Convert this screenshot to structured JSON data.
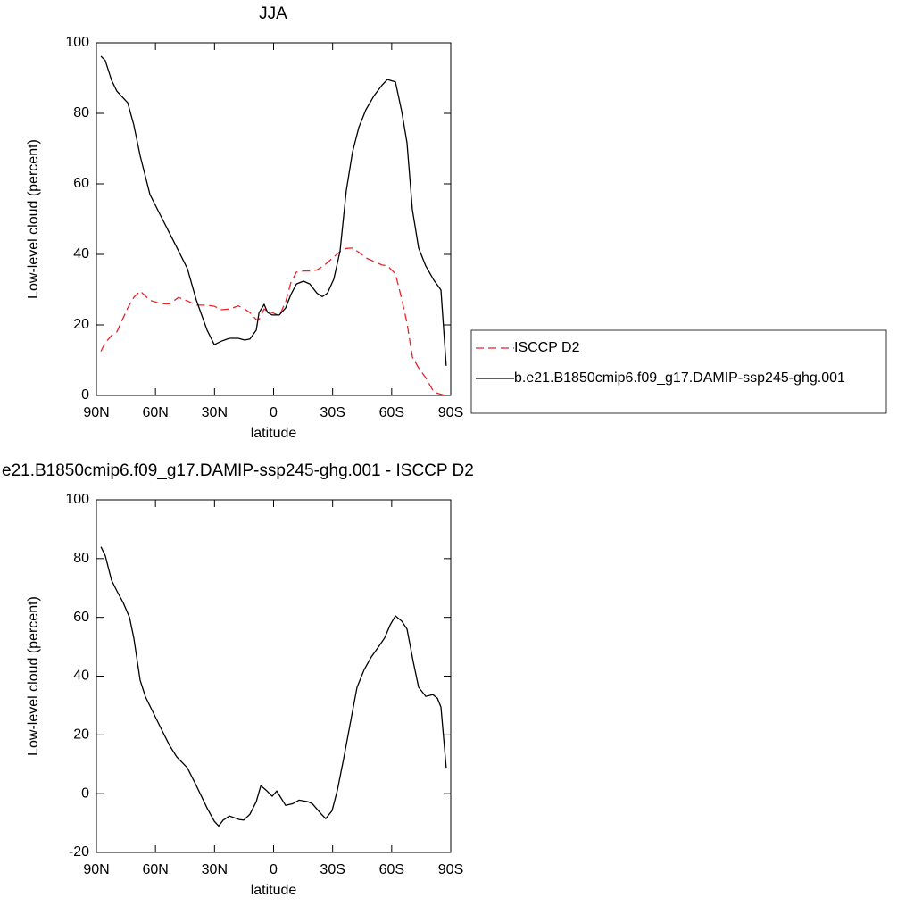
{
  "chart_data": [
    {
      "type": "line",
      "title": "JJA",
      "ylabel": "Low-level cloud (percent)",
      "xlabel": "latitude",
      "x": [
        87.7,
        85.5,
        82.3,
        79.6,
        74.1,
        71.0,
        67.8,
        62.8,
        57.4,
        52.8,
        48.3,
        43.8,
        39.2,
        33.8,
        30.1,
        26.5,
        22.4,
        17.9,
        14.7,
        12.0,
        8.8,
        7.4,
        4.8,
        3.0,
        0.7,
        -2.9,
        -6.1,
        -8.8,
        -11.6,
        -15.2,
        -18.4,
        -22.0,
        -24.7,
        -27.4,
        -30.6,
        -33.8,
        -36.9,
        -40.1,
        -43.3,
        -46.9,
        -51.0,
        -55.1,
        -57.8,
        -61.9,
        -65.1,
        -67.8,
        -70.5,
        -73.7,
        -77.3,
        -81.4,
        -85.0,
        -87.7
      ],
      "series": [
        {
          "name": "ISCCP D2",
          "color": "#e8232a",
          "dash": true,
          "values": [
            12.5,
            15,
            17,
            18,
            24.8,
            27.8,
            29.6,
            27,
            26,
            26,
            27.8,
            26.8,
            25.6,
            25.6,
            25.3,
            24.3,
            24.5,
            25.4,
            24.5,
            23.5,
            21.5,
            21.5,
            24.5,
            23.8,
            23.5,
            22.6,
            26.5,
            32,
            35,
            35.3,
            35.3,
            35.6,
            36.5,
            37.7,
            39.3,
            40.8,
            41.7,
            41.8,
            40.6,
            39,
            38,
            37,
            36.8,
            34.5,
            27.3,
            20.5,
            10.9,
            7.8,
            5,
            1,
            0.3,
            0
          ]
        },
        {
          "name": "b.e21.B1850cmip6.f09_g17.DAMIP-ssp245-ghg.001",
          "color": "#000000",
          "dash": false,
          "values": [
            96.2,
            95,
            89.4,
            86.3,
            83,
            76.7,
            68,
            57,
            51,
            46,
            41,
            36,
            27,
            18.5,
            14.4,
            15.4,
            16.2,
            16.2,
            15.7,
            16,
            18.5,
            23.5,
            25.8,
            23.5,
            22.8,
            22.8,
            24.8,
            28.6,
            31.6,
            32.4,
            31.6,
            29,
            28,
            29,
            33,
            41,
            58,
            69,
            76,
            81,
            85,
            88,
            89.6,
            88.9,
            80.5,
            71.6,
            52.7,
            41.8,
            36.7,
            32.7,
            29.9,
            8.4
          ]
        }
      ],
      "xlim": [
        90,
        -90
      ],
      "xticks": [
        {
          "value": 90,
          "label": "90N"
        },
        {
          "value": 60,
          "label": "60N"
        },
        {
          "value": 30,
          "label": "30N"
        },
        0,
        {
          "value": -30,
          "label": "30S"
        },
        {
          "value": -60,
          "label": "60S"
        },
        {
          "value": -90,
          "label": "90S"
        }
      ],
      "ylim": [
        0,
        100
      ],
      "yticks": [
        0,
        20,
        40,
        60,
        80,
        100
      ],
      "legend": "right"
    },
    {
      "type": "line",
      "title": "e21.B1850cmip6.f09_g17.DAMIP-ssp245-ghg.001 - ISCCP D2",
      "ylabel": "Low-level cloud (percent)",
      "xlabel": "latitude",
      "x": [
        87.7,
        85.5,
        82.3,
        79.6,
        76.4,
        73.2,
        71.0,
        67.8,
        65.1,
        61.9,
        57.4,
        52.8,
        49.2,
        43.8,
        39.2,
        33.8,
        30.1,
        27.9,
        25.6,
        22.4,
        17.5,
        15.2,
        12.0,
        8.8,
        6.5,
        3.8,
        0.7,
        -1.6,
        -6.1,
        -9.7,
        -12.9,
        -17.4,
        -19.7,
        -24.3,
        -26.5,
        -29.7,
        -32.4,
        -35.6,
        -38.8,
        -42.4,
        -46.0,
        -49.6,
        -53.3,
        -56.4,
        -59.2,
        -61.9,
        -65.1,
        -67.8,
        -71.0,
        -73.7,
        -77.3,
        -80.9,
        -83.2,
        -85.0,
        -87.7
      ],
      "color": "#000000",
      "values": [
        84,
        81,
        72.6,
        69,
        65,
        60,
        53,
        38.6,
        33,
        28.6,
        22.5,
        16.4,
        12.5,
        8.8,
        2.7,
        -4.9,
        -9.4,
        -11,
        -9,
        -7.6,
        -8.8,
        -9,
        -7,
        -2.7,
        2.7,
        1.2,
        -0.9,
        0.9,
        -4,
        -3.4,
        -2.2,
        -2.7,
        -3.4,
        -7,
        -8.5,
        -5.8,
        1.2,
        11.9,
        23.4,
        36.2,
        42.2,
        46.5,
        50,
        53,
        57.4,
        60.5,
        58.7,
        56,
        44.7,
        36.2,
        33.1,
        33.7,
        32.5,
        29.5,
        8.8
      ],
      "xlim": [
        90,
        -90
      ],
      "xticks": [
        {
          "value": 90,
          "label": "90N"
        },
        {
          "value": 60,
          "label": "60N"
        },
        {
          "value": 30,
          "label": "30N"
        },
        0,
        {
          "value": -30,
          "label": "30S"
        },
        {
          "value": -60,
          "label": "60S"
        },
        {
          "value": -90,
          "label": "90S"
        }
      ],
      "ylim": [
        -20,
        100
      ],
      "yticks": [
        -20,
        0,
        20,
        40,
        60,
        80,
        100
      ]
    }
  ]
}
